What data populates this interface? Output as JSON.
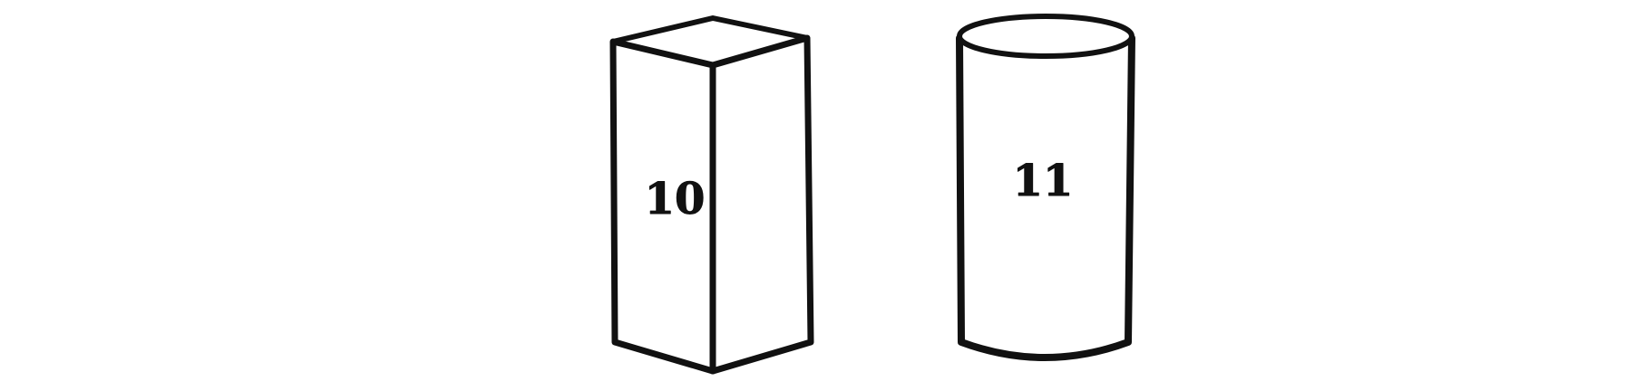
{
  "shapes": [
    {
      "kind": "rectangular-prism",
      "label": "10"
    },
    {
      "kind": "cylinder",
      "label": "11"
    }
  ],
  "colors": {
    "stroke": "#111111",
    "fill": "#ffffff",
    "background": "#ffffff"
  }
}
